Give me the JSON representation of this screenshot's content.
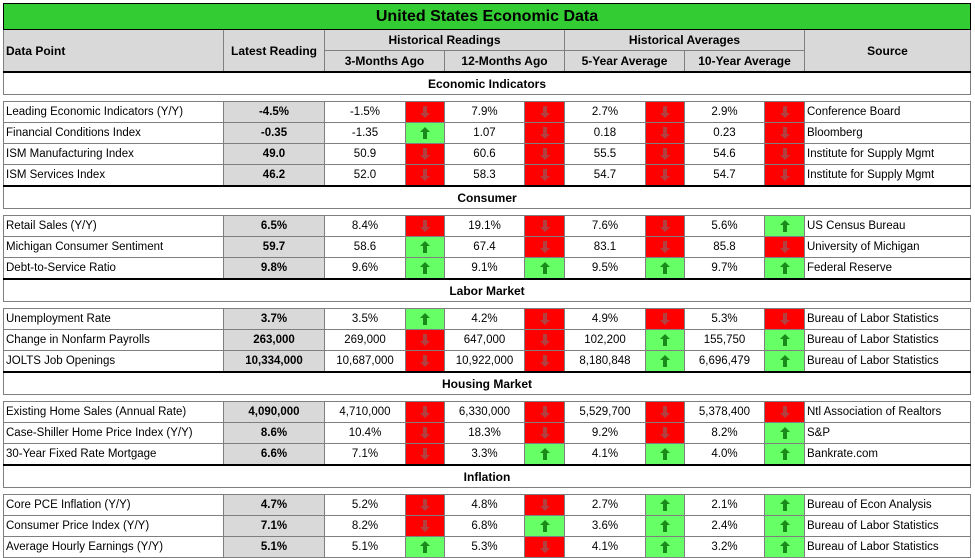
{
  "title": "United States Economic Data",
  "headers": {
    "data_point": "Data Point",
    "latest": "Latest Reading",
    "historical_readings": "Historical Readings",
    "three_months": "3-Months Ago",
    "twelve_months": "12-Months Ago",
    "historical_averages": "Historical Averages",
    "five_year": "5-Year Average",
    "ten_year": "10-Year Average",
    "source": "Source"
  },
  "colors": {
    "title_bg": "#33cc33",
    "header_bg": "#d9d9d9",
    "up_bg": "#66ff66",
    "down_bg": "#ff0000",
    "up_arrow": "#1a8a1a",
    "down_arrow": "#b34040"
  },
  "sections": [
    {
      "name": "Economic Indicators",
      "rows": [
        {
          "name": "Leading Economic Indicators (Y/Y)",
          "latest": "-4.5%",
          "m3": "-1.5%",
          "m3_dir": "down",
          "m12": "7.9%",
          "m12_dir": "down",
          "y5": "2.7%",
          "y5_dir": "down",
          "y10": "2.9%",
          "y10_dir": "down",
          "source": "Conference Board"
        },
        {
          "name": "Financial Conditions Index",
          "latest": "-0.35",
          "m3": "-1.35",
          "m3_dir": "up",
          "m12": "1.07",
          "m12_dir": "down",
          "y5": "0.18",
          "y5_dir": "down",
          "y10": "0.23",
          "y10_dir": "down",
          "source": "Bloomberg"
        },
        {
          "name": "ISM Manufacturing Index",
          "latest": "49.0",
          "m3": "50.9",
          "m3_dir": "down",
          "m12": "60.6",
          "m12_dir": "down",
          "y5": "55.5",
          "y5_dir": "down",
          "y10": "54.6",
          "y10_dir": "down",
          "source": "Institute for Supply Mgmt"
        },
        {
          "name": "ISM Services Index",
          "latest": "46.2",
          "m3": "52.0",
          "m3_dir": "down",
          "m12": "58.3",
          "m12_dir": "down",
          "y5": "54.7",
          "y5_dir": "down",
          "y10": "54.7",
          "y10_dir": "down",
          "source": "Institute for Supply Mgmt"
        }
      ]
    },
    {
      "name": "Consumer",
      "rows": [
        {
          "name": "Retail Sales (Y/Y)",
          "latest": "6.5%",
          "m3": "8.4%",
          "m3_dir": "down",
          "m12": "19.1%",
          "m12_dir": "down",
          "y5": "7.6%",
          "y5_dir": "down",
          "y10": "5.6%",
          "y10_dir": "up",
          "source": "US Census Bureau"
        },
        {
          "name": "Michigan Consumer Sentiment",
          "latest": "59.7",
          "m3": "58.6",
          "m3_dir": "up",
          "m12": "67.4",
          "m12_dir": "down",
          "y5": "83.1",
          "y5_dir": "down",
          "y10": "85.8",
          "y10_dir": "down",
          "source": "University of Michigan"
        },
        {
          "name": "Debt-to-Service Ratio",
          "latest": "9.8%",
          "m3": "9.6%",
          "m3_dir": "up",
          "m12": "9.1%",
          "m12_dir": "up",
          "y5": "9.5%",
          "y5_dir": "up",
          "y10": "9.7%",
          "y10_dir": "up",
          "source": "Federal Reserve"
        }
      ]
    },
    {
      "name": "Labor Market",
      "rows": [
        {
          "name": "Unemployment Rate",
          "latest": "3.7%",
          "m3": "3.5%",
          "m3_dir": "up",
          "m12": "4.2%",
          "m12_dir": "down",
          "y5": "4.9%",
          "y5_dir": "down",
          "y10": "5.3%",
          "y10_dir": "down",
          "source": "Bureau of Labor Statistics"
        },
        {
          "name": "Change in Nonfarm Payrolls",
          "latest": "263,000",
          "m3": "269,000",
          "m3_dir": "down",
          "m12": "647,000",
          "m12_dir": "down",
          "y5": "102,200",
          "y5_dir": "up",
          "y10": "155,750",
          "y10_dir": "up",
          "source": "Bureau of Labor Statistics"
        },
        {
          "name": "JOLTS Job Openings",
          "latest": "10,334,000",
          "m3": "10,687,000",
          "m3_dir": "down",
          "m12": "10,922,000",
          "m12_dir": "down",
          "y5": "8,180,848",
          "y5_dir": "up",
          "y10": "6,696,479",
          "y10_dir": "up",
          "source": "Bureau of Labor Statistics"
        }
      ]
    },
    {
      "name": "Housing Market",
      "rows": [
        {
          "name": "Existing Home Sales (Annual Rate)",
          "latest": "4,090,000",
          "m3": "4,710,000",
          "m3_dir": "down",
          "m12": "6,330,000",
          "m12_dir": "down",
          "y5": "5,529,700",
          "y5_dir": "down",
          "y10": "5,378,400",
          "y10_dir": "down",
          "source": "Ntl Association of Realtors"
        },
        {
          "name": "Case-Shiller Home Price Index (Y/Y)",
          "latest": "8.6%",
          "m3": "10.4%",
          "m3_dir": "down",
          "m12": "18.3%",
          "m12_dir": "down",
          "y5": "9.2%",
          "y5_dir": "down",
          "y10": "8.2%",
          "y10_dir": "up",
          "source": "S&P"
        },
        {
          "name": "30-Year Fixed Rate Mortgage",
          "latest": "6.6%",
          "m3": "7.1%",
          "m3_dir": "down",
          "m12": "3.3%",
          "m12_dir": "up",
          "y5": "4.1%",
          "y5_dir": "up",
          "y10": "4.0%",
          "y10_dir": "up",
          "source": "Bankrate.com"
        }
      ]
    },
    {
      "name": "Inflation",
      "rows": [
        {
          "name": "Core PCE Inflation (Y/Y)",
          "latest": "4.7%",
          "m3": "5.2%",
          "m3_dir": "down",
          "m12": "4.8%",
          "m12_dir": "down",
          "y5": "2.7%",
          "y5_dir": "up",
          "y10": "2.1%",
          "y10_dir": "up",
          "source": "Bureau of Econ Analysis"
        },
        {
          "name": "Consumer Price Index (Y/Y)",
          "latest": "7.1%",
          "m3": "8.2%",
          "m3_dir": "down",
          "m12": "6.8%",
          "m12_dir": "up",
          "y5": "3.6%",
          "y5_dir": "up",
          "y10": "2.4%",
          "y10_dir": "up",
          "source": "Bureau of Labor Statistics"
        },
        {
          "name": "Average Hourly Earnings (Y/Y)",
          "latest": "5.1%",
          "m3": "5.1%",
          "m3_dir": "up",
          "m12": "5.3%",
          "m12_dir": "down",
          "y5": "4.1%",
          "y5_dir": "up",
          "y10": "3.2%",
          "y10_dir": "up",
          "source": "Bureau of Labor Statistics"
        }
      ]
    }
  ]
}
